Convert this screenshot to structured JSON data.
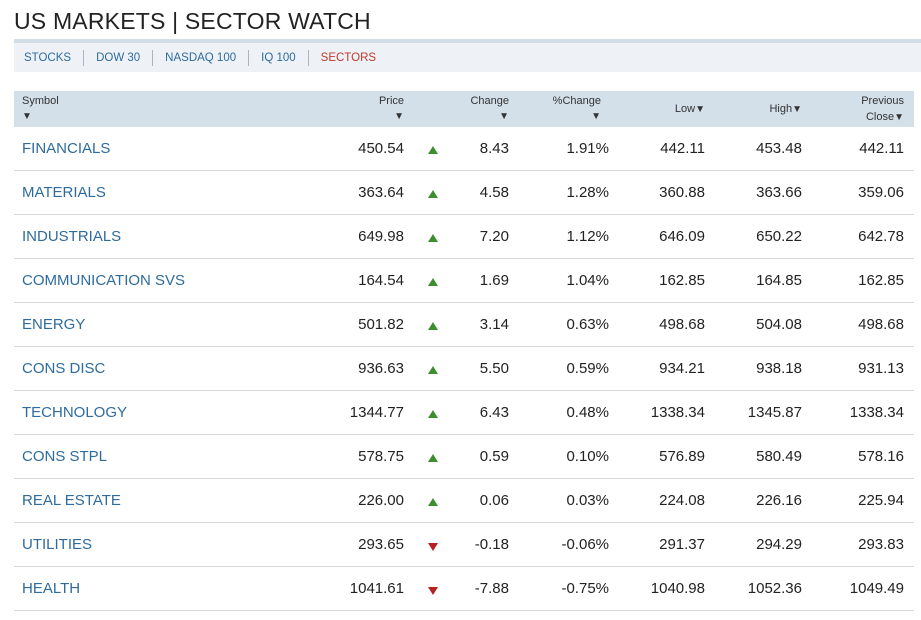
{
  "page": {
    "title": "US MARKETS | SECTOR WATCH"
  },
  "nav": {
    "items": [
      {
        "label": "STOCKS",
        "active": false
      },
      {
        "label": "DOW 30",
        "active": false
      },
      {
        "label": "NASDAQ 100",
        "active": false
      },
      {
        "label": "IQ 100",
        "active": false
      },
      {
        "label": "SECTORS",
        "active": true
      }
    ]
  },
  "table": {
    "headers": {
      "symbol": "Symbol",
      "price": "Price",
      "change": "Change",
      "pct_change": "%Change",
      "low": "Low",
      "high": "High",
      "prev_line1": "Previous",
      "prev_line2": "Close",
      "sort_glyph": "▼"
    },
    "rows": [
      {
        "symbol": "FINANCIALS",
        "price": "450.54",
        "dir": "up",
        "change": "8.43",
        "pct": "1.91%",
        "low": "442.11",
        "high": "453.48",
        "prev": "442.11"
      },
      {
        "symbol": "MATERIALS",
        "price": "363.64",
        "dir": "up",
        "change": "4.58",
        "pct": "1.28%",
        "low": "360.88",
        "high": "363.66",
        "prev": "359.06"
      },
      {
        "symbol": "INDUSTRIALS",
        "price": "649.98",
        "dir": "up",
        "change": "7.20",
        "pct": "1.12%",
        "low": "646.09",
        "high": "650.22",
        "prev": "642.78"
      },
      {
        "symbol": "COMMUNICATION SVS",
        "price": "164.54",
        "dir": "up",
        "change": "1.69",
        "pct": "1.04%",
        "low": "162.85",
        "high": "164.85",
        "prev": "162.85"
      },
      {
        "symbol": "ENERGY",
        "price": "501.82",
        "dir": "up",
        "change": "3.14",
        "pct": "0.63%",
        "low": "498.68",
        "high": "504.08",
        "prev": "498.68"
      },
      {
        "symbol": "CONS DISC",
        "price": "936.63",
        "dir": "up",
        "change": "5.50",
        "pct": "0.59%",
        "low": "934.21",
        "high": "938.18",
        "prev": "931.13"
      },
      {
        "symbol": "TECHNOLOGY",
        "price": "1344.77",
        "dir": "up",
        "change": "6.43",
        "pct": "0.48%",
        "low": "1338.34",
        "high": "1345.87",
        "prev": "1338.34"
      },
      {
        "symbol": "CONS STPL",
        "price": "578.75",
        "dir": "up",
        "change": "0.59",
        "pct": "0.10%",
        "low": "576.89",
        "high": "580.49",
        "prev": "578.16"
      },
      {
        "symbol": "REAL ESTATE",
        "price": "226.00",
        "dir": "up",
        "change": "0.06",
        "pct": "0.03%",
        "low": "224.08",
        "high": "226.16",
        "prev": "225.94"
      },
      {
        "symbol": "UTILITIES",
        "price": "293.65",
        "dir": "down",
        "change": "-0.18",
        "pct": "-0.06%",
        "low": "291.37",
        "high": "294.29",
        "prev": "293.83"
      },
      {
        "symbol": "HEALTH",
        "price": "1041.61",
        "dir": "down",
        "change": "-7.88",
        "pct": "-0.75%",
        "low": "1040.98",
        "high": "1052.36",
        "prev": "1049.49"
      }
    ]
  },
  "colors": {
    "link": "#2e6b9e",
    "active_nav": "#c0392b",
    "up": "#3e8e2f",
    "down": "#b52020",
    "header_bg": "#d3dfe9"
  }
}
